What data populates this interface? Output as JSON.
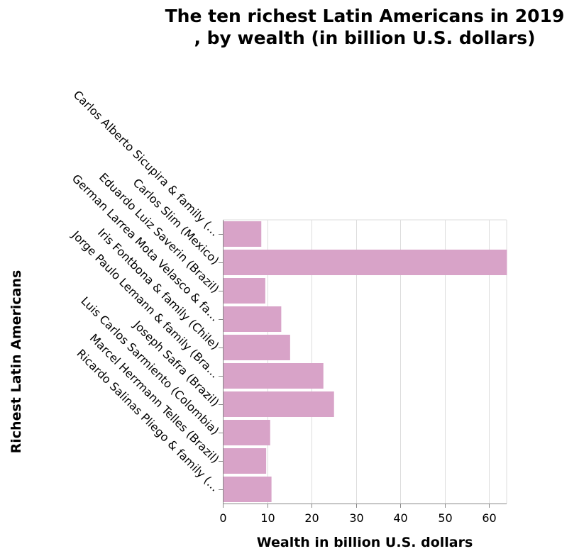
{
  "chart_data": {
    "type": "bar",
    "orientation": "horizontal",
    "title_lines": [
      "The ten richest Latin Americans in 2019",
      ", by wealth (in billion U.S. dollars)"
    ],
    "xlabel": "Wealth in billion U.S. dollars",
    "ylabel": "Richest Latin Americans",
    "xlim": [
      0,
      64
    ],
    "xticks": [
      0,
      10,
      20,
      30,
      40,
      50,
      60
    ],
    "grid": true,
    "legend": "none",
    "bar_color": "#d8a3c8",
    "categories": [
      "Carlos Alberto Sicupira & family (…",
      "Carlos Slim (Mexico)",
      "Eduardo Luiz Saverin (Brazil)",
      "German Larrea Mota Velasco & fa…",
      "Iris Fontbona & family (Chile)",
      "Jorge Paulo Lemann & family (Bra…",
      "Joseph Safra (Brazil)",
      "Luis Carlos Sarmiento (Colombia)",
      "Marcel Herrmann Telles (Brazil)",
      "Ricardo Salinas Pliego & family (…"
    ],
    "values": [
      8.6,
      64.0,
      9.5,
      13.1,
      15.1,
      22.6,
      25.0,
      10.6,
      9.7,
      10.9
    ]
  }
}
